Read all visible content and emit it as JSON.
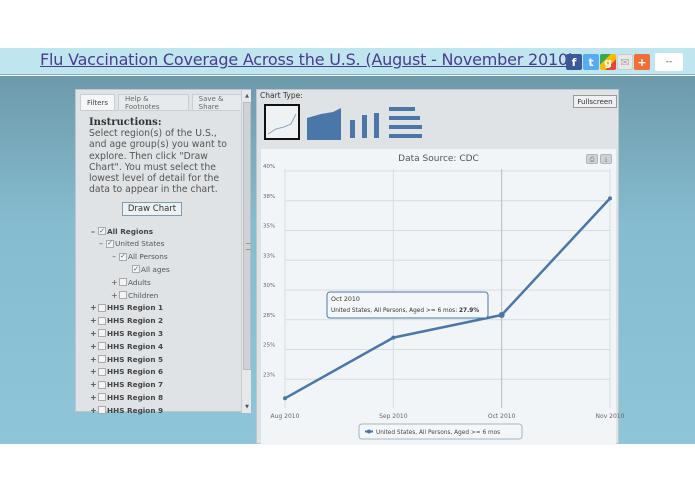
{
  "header": {
    "title": "Flu Vaccination Coverage Across the U.S. (August - November 2010)",
    "share_icons": [
      "facebook-icon",
      "twitter-icon",
      "google-plus-icon",
      "email-icon",
      "addthis-plus-icon"
    ],
    "share_count": "--"
  },
  "left_panel": {
    "tabs": [
      {
        "label": "Filters",
        "active": true
      },
      {
        "label": "Help & Footnotes",
        "active": false
      },
      {
        "label": "Save & Share",
        "active": false
      }
    ],
    "instructions_title": "Instructions:",
    "instructions_text": "Select region(s) of the U.S., and age group(s) you want to explore. Then click \"Draw Chart\". You must select the lowest level of detail for the data to appear in the chart.",
    "draw_button": "Draw Chart",
    "tree": [
      {
        "label": "All Regions",
        "expander": "–",
        "checked": true,
        "bold": true,
        "level": 0
      },
      {
        "label": "United States",
        "expander": "–",
        "checked": true,
        "bold": false,
        "level": 1
      },
      {
        "label": "All Persons",
        "expander": "–",
        "checked": true,
        "bold": false,
        "level": 2
      },
      {
        "label": "All ages",
        "expander": "",
        "checked": true,
        "bold": false,
        "level": 3
      },
      {
        "label": "Adults",
        "expander": "+",
        "checked": false,
        "bold": false,
        "level": 2
      },
      {
        "label": "Children",
        "expander": "+",
        "checked": false,
        "bold": false,
        "level": 2
      },
      {
        "label": "HHS Region 1",
        "expander": "+",
        "checked": false,
        "bold": true,
        "level": 0
      },
      {
        "label": "HHS Region 2",
        "expander": "+",
        "checked": false,
        "bold": true,
        "level": 0
      },
      {
        "label": "HHS Region 3",
        "expander": "+",
        "checked": false,
        "bold": true,
        "level": 0
      },
      {
        "label": "HHS Region 4",
        "expander": "+",
        "checked": false,
        "bold": true,
        "level": 0
      },
      {
        "label": "HHS Region 5",
        "expander": "+",
        "checked": false,
        "bold": true,
        "level": 0
      },
      {
        "label": "HHS Region 6",
        "expander": "+",
        "checked": false,
        "bold": true,
        "level": 0
      },
      {
        "label": "HHS Region 7",
        "expander": "+",
        "checked": false,
        "bold": true,
        "level": 0
      },
      {
        "label": "HHS Region 8",
        "expander": "+",
        "checked": false,
        "bold": true,
        "level": 0
      },
      {
        "label": "HHS Region 9",
        "expander": "+",
        "checked": false,
        "bold": true,
        "level": 0
      }
    ]
  },
  "right_panel": {
    "chart_type_label": "Chart Type:",
    "chart_types": [
      "line",
      "area",
      "column",
      "bar"
    ],
    "selected_chart_type": "line",
    "fullscreen_button": "Fullscreen",
    "print_icon": "print-icon",
    "download_icon": "download-icon"
  },
  "colors": {
    "series": "#4a77a8",
    "header_bg": "#bfe6ee",
    "title_link": "#4b3b92"
  },
  "chart_data": {
    "type": "line",
    "title": "Data Source: CDC",
    "categories": [
      "Aug 2010",
      "Sep 2010",
      "Oct 2010",
      "Nov 2010"
    ],
    "series": [
      {
        "name": "United States, All Persons, Aged >= 6 mos",
        "values": [
          20.9,
          26.0,
          27.9,
          37.7
        ]
      }
    ],
    "yticks": [
      "23%",
      "25%",
      "28%",
      "30%",
      "33%",
      "35%",
      "38%",
      "40%"
    ],
    "ytick_values": [
      22.5,
      25,
      27.5,
      30,
      32.5,
      35,
      37.5,
      40
    ],
    "ylim": [
      21,
      40
    ],
    "xlabel": "",
    "ylabel": "",
    "grid": true,
    "legend_position": "bottom",
    "tooltip": {
      "title": "Oct 2010",
      "text": "United States, All Persons, Aged >= 6 mos: ",
      "value": "27.9%"
    }
  }
}
